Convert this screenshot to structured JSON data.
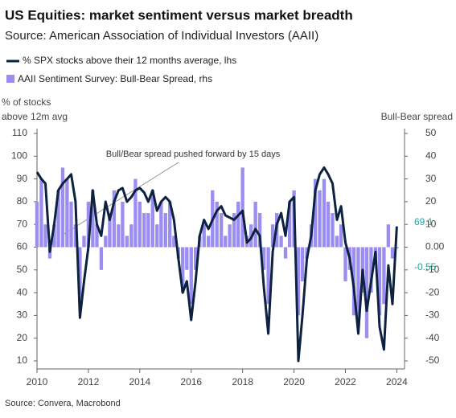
{
  "chart_data": {
    "type": "line_bar",
    "title": "US Equities: market sentiment versus market breadth",
    "subtitle": "Source: American Association of Individual Investors (AAII)",
    "ylabel": [
      "% of stocks",
      "above 12m avg"
    ],
    "y2label": "Bull-Bear spread",
    "annotation": "Bull/Bear spread pushed forward by 15 days",
    "source": "Source: Convera, Macrobond",
    "x": [
      2010.0,
      2010.17,
      2010.33,
      2010.5,
      2010.67,
      2010.83,
      2011.0,
      2011.17,
      2011.33,
      2011.5,
      2011.67,
      2011.83,
      2012.0,
      2012.17,
      2012.33,
      2012.5,
      2012.67,
      2012.83,
      2013.0,
      2013.17,
      2013.33,
      2013.5,
      2013.67,
      2013.83,
      2014.0,
      2014.17,
      2014.33,
      2014.5,
      2014.67,
      2014.83,
      2015.0,
      2015.17,
      2015.33,
      2015.5,
      2015.67,
      2015.83,
      2016.0,
      2016.17,
      2016.33,
      2016.5,
      2016.67,
      2016.83,
      2017.0,
      2017.17,
      2017.33,
      2017.5,
      2017.67,
      2017.83,
      2018.0,
      2018.17,
      2018.33,
      2018.5,
      2018.67,
      2018.83,
      2019.0,
      2019.17,
      2019.33,
      2019.5,
      2019.67,
      2019.83,
      2020.0,
      2020.17,
      2020.33,
      2020.5,
      2020.67,
      2020.83,
      2021.0,
      2021.17,
      2021.33,
      2021.5,
      2021.67,
      2021.83,
      2022.0,
      2022.17,
      2022.33,
      2022.5,
      2022.67,
      2022.83,
      2023.0,
      2023.17,
      2023.33,
      2023.5,
      2023.67,
      2023.83,
      2024.0
    ],
    "series": [
      {
        "name": "% SPX stocks above their 12 months average, lhs",
        "color": "#0d2240",
        "kind": "line",
        "axis": "y",
        "values": [
          93,
          90,
          88,
          58,
          70,
          85,
          88,
          90,
          92,
          80,
          29,
          45,
          60,
          85,
          70,
          65,
          80,
          72,
          80,
          85,
          86,
          80,
          82,
          85,
          86,
          84,
          80,
          85,
          76,
          80,
          82,
          80,
          72,
          55,
          40,
          45,
          28,
          45,
          65,
          72,
          68,
          72,
          76,
          78,
          74,
          73,
          72,
          74,
          76,
          62,
          64,
          68,
          65,
          42,
          22,
          58,
          70,
          75,
          65,
          80,
          82,
          10,
          30,
          55,
          65,
          85,
          92,
          95,
          92,
          88,
          72,
          78,
          62,
          55,
          42,
          22,
          50,
          32,
          45,
          58,
          25,
          15,
          52,
          35,
          69.1
        ]
      },
      {
        "name": "AAII Sentiment Survey: Bull-Bear Spread, rhs",
        "color": "#9b8ef0",
        "kind": "bar",
        "axis": "y2",
        "values": [
          20,
          30,
          10,
          -5,
          10,
          25,
          35,
          30,
          20,
          10,
          -25,
          5,
          20,
          25,
          10,
          -10,
          5,
          15,
          25,
          10,
          20,
          5,
          10,
          30,
          20,
          15,
          15,
          25,
          10,
          20,
          15,
          20,
          5,
          -5,
          -20,
          -10,
          -25,
          -10,
          5,
          10,
          5,
          25,
          20,
          15,
          5,
          10,
          15,
          20,
          35,
          5,
          10,
          20,
          15,
          -10,
          -25,
          10,
          15,
          5,
          -5,
          20,
          25,
          -30,
          -15,
          -5,
          10,
          30,
          25,
          30,
          20,
          15,
          5,
          10,
          -15,
          -10,
          -30,
          -35,
          -20,
          -40,
          -20,
          -5,
          -30,
          -25,
          10,
          -5,
          -0.55
        ]
      }
    ],
    "xlim": [
      2010,
      2024.3
    ],
    "xticks": [
      2010,
      2012,
      2014,
      2016,
      2018,
      2020,
      2022,
      2024
    ],
    "ylim": [
      10,
      110
    ],
    "yticks": [
      10,
      20,
      30,
      40,
      50,
      60,
      70,
      80,
      90,
      100,
      110
    ],
    "y2lim": [
      -50,
      50
    ],
    "y2ticks": [
      -50,
      -40,
      -30,
      -20,
      -10,
      {
        "value": 0,
        "label": "0.00"
      },
      10,
      20,
      30,
      40,
      50
    ],
    "last_label_color": "#2aa198"
  }
}
